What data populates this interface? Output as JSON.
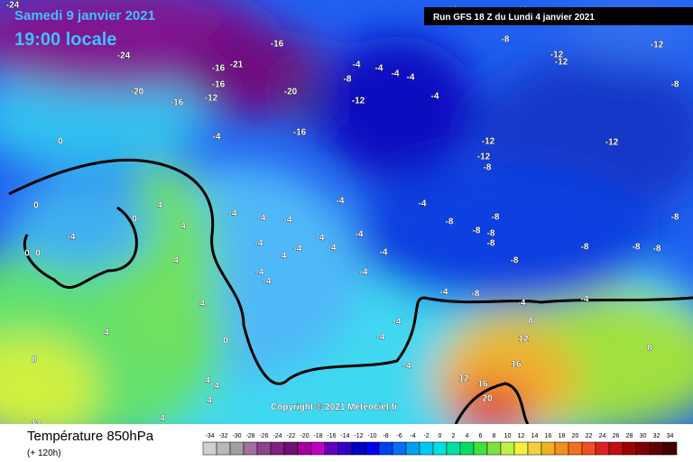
{
  "header": {
    "date": "Samedi 9 janvier 2021",
    "time": "19:00 locale",
    "run": "Run GFS 18 Z du Lundi 4 janvier 2021"
  },
  "map": {
    "labels": [
      "-24",
      "-12",
      "-12",
      "-8",
      "-12",
      "-12",
      "-12",
      "-24",
      "-16",
      "-16",
      "-21",
      "-16",
      "-20",
      "-16",
      "-12",
      "-20",
      "-4",
      "-4",
      "-4",
      "-4",
      "-8",
      "-4",
      "-12",
      "-8",
      "-16",
      "-4",
      "0",
      "-12",
      "-12",
      "-12",
      "-8",
      "-4",
      "-4",
      "0",
      "4",
      "-4",
      "-4",
      "-4",
      "0",
      "4",
      "-4",
      "-8",
      "-8",
      "-8",
      "-8",
      "-8",
      "-4",
      "-4",
      "-4",
      "-4",
      "-4",
      "-4",
      "4",
      "-8",
      "-8",
      "-8",
      "-8",
      "0",
      "0",
      "-4",
      "-4",
      "-8",
      "-4",
      "-4",
      "-4",
      "-8",
      "-4",
      "-4",
      "4",
      "4",
      "-4",
      "-4",
      "8",
      "12",
      "0",
      "8",
      "8",
      "16",
      "12",
      "16",
      "-4",
      "4",
      "4",
      "4",
      "20",
      "12",
      "4"
    ],
    "copyright": "Copyright © 2021 Meteociel.fr"
  },
  "legend": {
    "title": "Température 850hPa",
    "subtitle": "(+ 120h)",
    "ticks": [
      -34,
      -32,
      -30,
      -28,
      -26,
      -24,
      -22,
      -20,
      -18,
      -16,
      -14,
      -12,
      -10,
      -8,
      -6,
      -4,
      -2,
      0,
      2,
      4,
      6,
      8,
      10,
      12,
      14,
      16,
      18,
      20,
      22,
      24,
      26,
      28,
      30,
      32,
      34
    ],
    "colors": [
      "#d0d0d0",
      "#b8b8b8",
      "#a0a0a0",
      "#a070a0",
      "#904090",
      "#802080",
      "#701070",
      "#a000a0",
      "#c000c0",
      "#6000c0",
      "#3000c0",
      "#0000c0",
      "#0000f0",
      "#0040f0",
      "#0070f0",
      "#00a0f0",
      "#00c8f0",
      "#00e0e0",
      "#00e0a0",
      "#00e060",
      "#40e040",
      "#80e040",
      "#c0f040",
      "#f0f040",
      "#f0d040",
      "#f0b020",
      "#f09020",
      "#f07020",
      "#f05020",
      "#e02020",
      "#c01010",
      "#a00000",
      "#800000",
      "#600000",
      "#400000"
    ]
  }
}
